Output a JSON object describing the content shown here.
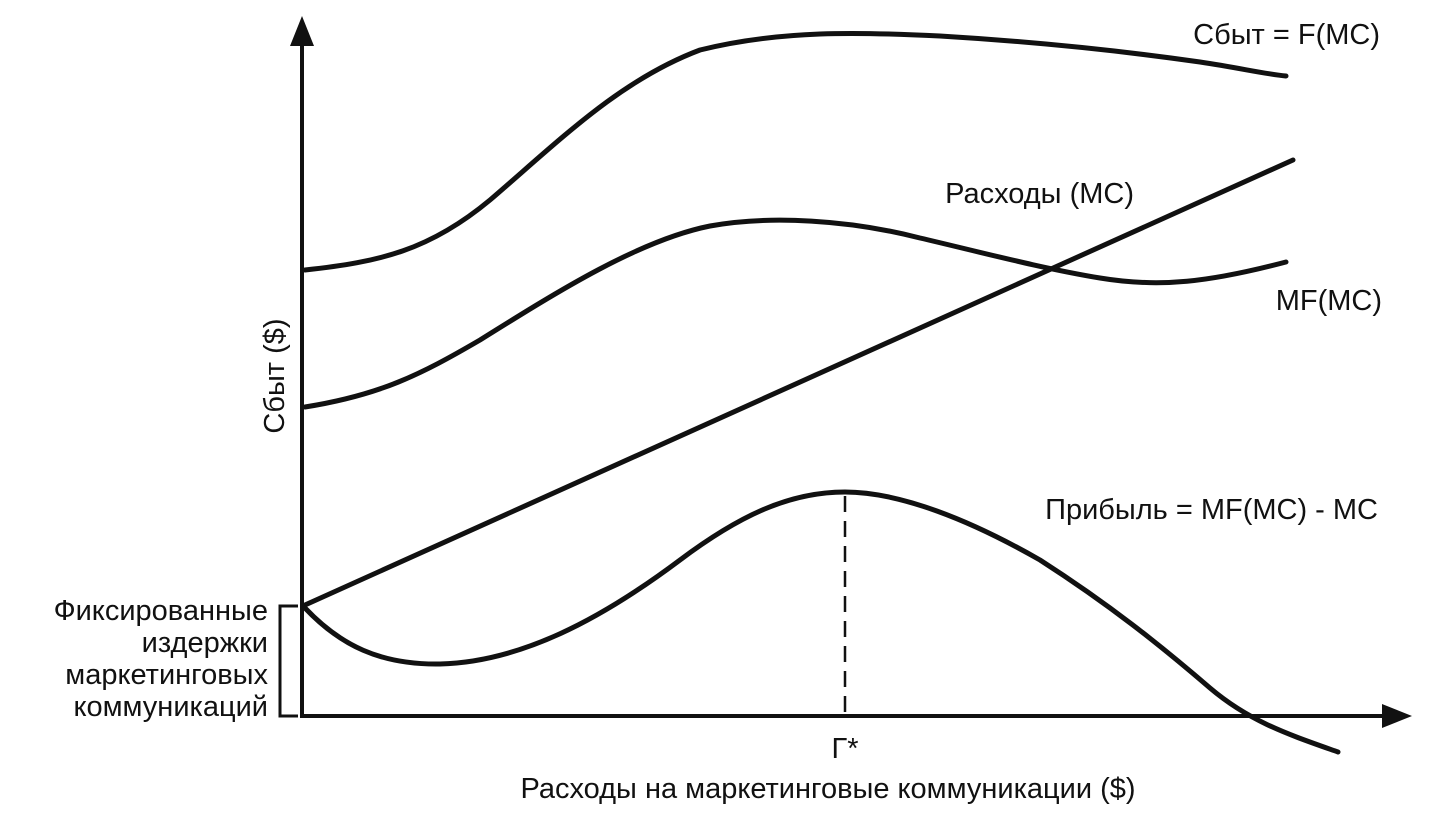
{
  "diagram": {
    "y_axis_label": "Сбыт ($)",
    "x_axis_label": "Расходы на маркетинговые коммуникации ($)",
    "x_marker_label": "Г*",
    "curves": {
      "sales": "Сбыт = F(MC)",
      "expenses": "Расходы (MC)",
      "margin": "MF(MC)",
      "profit": "Прибыль = MF(MC) - MC"
    },
    "fixed_costs_label": [
      "Фиксированные",
      "издержки",
      "маркетинговых",
      "коммуникаций"
    ],
    "colors": {
      "ink": "#111111",
      "background": "#ffffff"
    }
  }
}
